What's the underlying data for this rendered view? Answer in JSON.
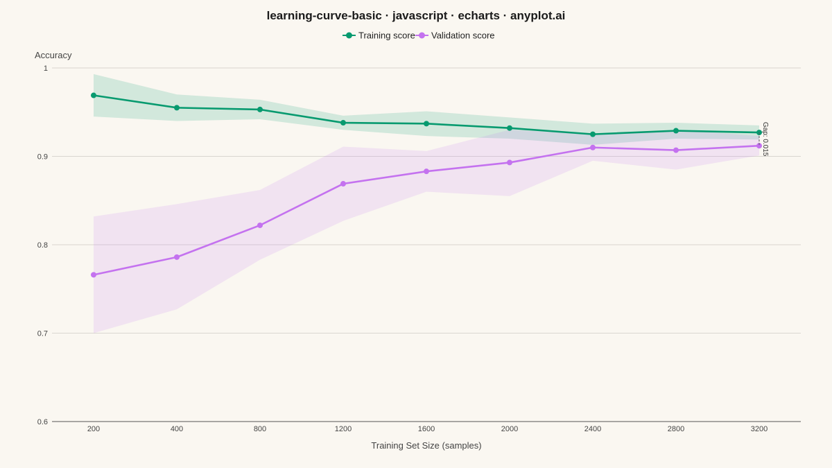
{
  "chart_data": {
    "type": "line",
    "title": "learning-curve-basic · javascript · echarts · anyplot.ai",
    "xlabel": "Training Set Size (samples)",
    "ylabel": "Accuracy",
    "categories": [
      "200",
      "400",
      "800",
      "1200",
      "1600",
      "2000",
      "2400",
      "2800",
      "3200"
    ],
    "ylim": [
      0.6,
      1
    ],
    "yticks": [
      "0.6",
      "0.7",
      "0.8",
      "0.9",
      "1"
    ],
    "grid": true,
    "legend_position": "top-center",
    "series": [
      {
        "name": "Training score",
        "color": "#079a6f",
        "band_color": "#079a6f",
        "values": [
          0.969,
          0.955,
          0.953,
          0.938,
          0.937,
          0.932,
          0.925,
          0.929,
          0.927
        ],
        "upper": [
          0.993,
          0.97,
          0.964,
          0.946,
          0.951,
          0.944,
          0.937,
          0.938,
          0.935
        ],
        "lower": [
          0.945,
          0.94,
          0.942,
          0.93,
          0.923,
          0.92,
          0.913,
          0.92,
          0.919
        ]
      },
      {
        "name": "Validation score",
        "color": "#c472ef",
        "band_color": "#c472ef",
        "values": [
          0.766,
          0.786,
          0.822,
          0.869,
          0.883,
          0.893,
          0.91,
          0.907,
          0.912
        ],
        "upper": [
          0.832,
          0.846,
          0.862,
          0.911,
          0.906,
          0.93,
          0.925,
          0.93,
          0.923
        ],
        "lower": [
          0.7,
          0.727,
          0.783,
          0.827,
          0.86,
          0.855,
          0.895,
          0.885,
          0.901
        ]
      }
    ],
    "annotation": {
      "text": "Gap: 0.015",
      "category": "3200"
    }
  }
}
